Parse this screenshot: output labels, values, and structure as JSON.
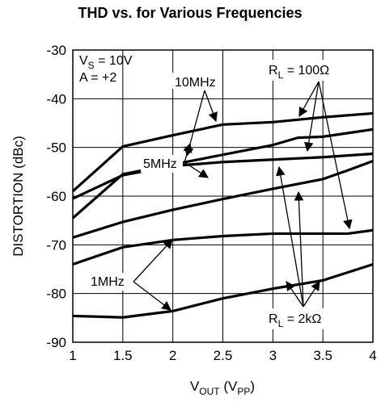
{
  "chart_data": {
    "type": "line",
    "title": "THD vs. for Various Frequencies",
    "xlabel": {
      "main": "V",
      "sub": "OUT",
      "rest": " (V",
      "sub2": "PP",
      "end": ")"
    },
    "ylabel": "DISTORTION (dBc)",
    "xlim": [
      1,
      4
    ],
    "ylim": [
      -90,
      -30
    ],
    "x_ticks": [
      1,
      1.5,
      2,
      2.5,
      3,
      3.5,
      4
    ],
    "x_tick_labels": [
      "1",
      "1.5",
      "2",
      "2.5",
      "3",
      "3.5",
      "4"
    ],
    "y_ticks": [
      -90,
      -80,
      -70,
      -60,
      -50,
      -40,
      -30
    ],
    "y_tick_labels": [
      "-90",
      "-80",
      "-70",
      "-60",
      "-50",
      "-40",
      "-30"
    ],
    "grid": true,
    "series": [
      {
        "x": [
          1,
          1.5,
          2,
          2.5,
          3,
          3.5,
          4
        ],
        "values": [
          -59,
          -49.8,
          -47.5,
          -45.3,
          -44.8,
          -43.8,
          -43
        ]
      },
      {
        "x": [
          1,
          1.5,
          2,
          2.5,
          3,
          3.25,
          3.5,
          4
        ],
        "values": [
          -64.5,
          -55.5,
          -53.5,
          -51.5,
          -49.5,
          -48,
          -47.8,
          -46.3
        ]
      },
      {
        "x": [
          1,
          1.5,
          2,
          2.5,
          3,
          3.5,
          4
        ],
        "values": [
          -60.5,
          -55.7,
          -53.8,
          -53,
          -52.5,
          -52,
          -51.3
        ]
      },
      {
        "x": [
          1,
          1.5,
          2,
          2.5,
          3,
          3.5,
          3.75,
          4
        ],
        "values": [
          -68.5,
          -65.3,
          -62.8,
          -60.6,
          -58.5,
          -56.5,
          -54.7,
          -52.8
        ]
      },
      {
        "x": [
          1,
          1.5,
          2,
          2.5,
          3,
          3.5,
          3.75,
          4
        ],
        "values": [
          -74,
          -70.5,
          -69,
          -68.2,
          -67.7,
          -67.7,
          -67.7,
          -67
        ]
      },
      {
        "x": [
          1,
          1.5,
          2,
          2.5,
          3,
          3.5,
          4
        ],
        "values": [
          -84.6,
          -84.9,
          -83.6,
          -81,
          -79,
          -77.3,
          -74
        ]
      }
    ],
    "annotations": {
      "vs": {
        "main": "V",
        "sub": "S",
        "rest": " = 10V"
      },
      "gain": "A = +2",
      "freq_10": "10MHz",
      "freq_5": "5MHz",
      "freq_1": "1MHz",
      "rl_100": {
        "main": "R",
        "sub": "L",
        "rest": " = 100Ω"
      },
      "rl_2k": {
        "main": "R",
        "sub": "L",
        "rest": " = 2kΩ"
      }
    }
  }
}
